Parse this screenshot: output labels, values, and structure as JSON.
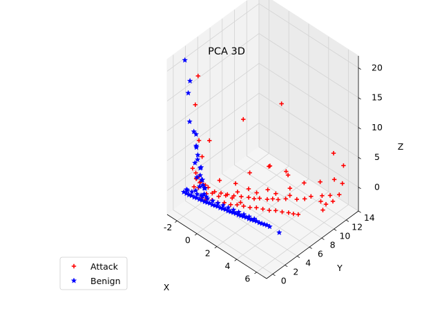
{
  "chart_data": {
    "type": "scatter",
    "title": "PCA 3D",
    "xlabel": "X",
    "ylabel": "Y",
    "zlabel": "Z",
    "xlim": [
      -3,
      7
    ],
    "ylim": [
      -1,
      14
    ],
    "zlim": [
      -4,
      22
    ],
    "xticks": [
      -2,
      0,
      2,
      4,
      6
    ],
    "yticks": [
      0,
      2,
      4,
      6,
      8,
      10,
      12,
      14
    ],
    "zticks": [
      0,
      5,
      10,
      15,
      20
    ],
    "xtick_labels": [
      "-2",
      "0",
      "2",
      "4",
      "6"
    ],
    "ytick_labels": [
      "0",
      "2",
      "4",
      "6",
      "8",
      "10",
      "12",
      "14"
    ],
    "ztick_labels": [
      "0",
      "5",
      "10",
      "15",
      "20"
    ],
    "legend_position": "lower-left",
    "grid": true,
    "series": [
      {
        "name": "Attack",
        "marker": "plus",
        "color": "#ff0000",
        "points": [
          [
            -1.0,
            0.8,
            20.0
          ],
          [
            -1.4,
            1.0,
            14.6
          ],
          [
            -0.6,
            0.3,
            10.0
          ],
          [
            -0.9,
            2.5,
            8.0
          ],
          [
            -0.9,
            1.3,
            6.2
          ],
          [
            -1.3,
            0.4,
            4.5
          ],
          [
            -1.1,
            0.6,
            3.8
          ],
          [
            -0.8,
            0.7,
            3.5
          ],
          [
            -1.0,
            0.5,
            3.0
          ],
          [
            -1.2,
            0.9,
            2.6
          ],
          [
            -0.9,
            1.1,
            2.2
          ],
          [
            -0.7,
            0.4,
            1.9
          ],
          [
            -1.1,
            0.3,
            1.7
          ],
          [
            -0.8,
            1.4,
            1.5
          ],
          [
            -1.3,
            1.6,
            1.2
          ],
          [
            -0.6,
            1.8,
            1.0
          ],
          [
            -1.0,
            2.0,
            0.8
          ],
          [
            -0.4,
            1.2,
            0.6
          ],
          [
            -0.2,
            2.2,
            0.4
          ],
          [
            0.0,
            1.5,
            0.9
          ],
          [
            0.2,
            2.6,
            0.3
          ],
          [
            0.4,
            1.9,
            0.5
          ],
          [
            0.6,
            3.0,
            0.2
          ],
          [
            0.8,
            2.4,
            0.7
          ],
          [
            1.0,
            3.4,
            0.1
          ],
          [
            1.2,
            2.8,
            0.4
          ],
          [
            1.5,
            3.8,
            0.2
          ],
          [
            1.8,
            3.2,
            0.0
          ],
          [
            2.0,
            4.2,
            0.3
          ],
          [
            2.3,
            4.6,
            0.1
          ],
          [
            2.6,
            5.0,
            0.2
          ],
          [
            3.0,
            5.6,
            0.0
          ],
          [
            3.3,
            6.0,
            0.1
          ],
          [
            3.6,
            6.4,
            0.0
          ],
          [
            4.0,
            7.0,
            0.1
          ],
          [
            -0.5,
            0.7,
            0.2
          ],
          [
            -0.3,
            0.9,
            -0.1
          ],
          [
            0.1,
            1.3,
            0.0
          ],
          [
            0.5,
            1.6,
            -0.2
          ],
          [
            0.9,
            2.0,
            -0.1
          ],
          [
            1.3,
            2.4,
            -0.3
          ],
          [
            1.7,
            2.8,
            -0.2
          ],
          [
            2.1,
            3.2,
            -0.3
          ],
          [
            2.5,
            3.6,
            -0.4
          ],
          [
            2.9,
            4.0,
            -0.3
          ],
          [
            3.3,
            4.4,
            -0.4
          ],
          [
            3.7,
            4.8,
            -0.5
          ],
          [
            4.1,
            5.2,
            -0.4
          ],
          [
            4.5,
            5.6,
            -0.5
          ],
          [
            4.9,
            6.0,
            -0.5
          ],
          [
            5.2,
            6.3,
            -0.6
          ],
          [
            5.5,
            6.6,
            -0.6
          ],
          [
            1.0,
            6.0,
            2.0
          ],
          [
            2.0,
            7.5,
            3.0
          ],
          [
            3.0,
            9.0,
            1.5
          ],
          [
            4.0,
            10.0,
            0.5
          ],
          [
            5.0,
            11.0,
            1.0
          ],
          [
            5.5,
            12.5,
            0.8
          ],
          [
            6.0,
            13.0,
            0.3
          ],
          [
            4.5,
            8.0,
            -0.2
          ],
          [
            5.0,
            9.5,
            -0.3
          ],
          [
            5.5,
            10.5,
            -0.4
          ],
          [
            6.0,
            11.0,
            -0.2
          ],
          [
            6.3,
            12.0,
            -0.5
          ],
          [
            6.5,
            9.0,
            -0.6
          ],
          [
            6.2,
            10.0,
            -0.7
          ],
          [
            3.5,
            8.5,
            0.2
          ],
          [
            2.5,
            6.5,
            0.4
          ],
          [
            1.5,
            5.0,
            0.6
          ],
          [
            -0.5,
            3.5,
            1.0
          ],
          [
            0.5,
            4.5,
            0.8
          ],
          [
            1.0,
            4.0,
            0.3
          ],
          [
            2.0,
            5.5,
            0.1
          ],
          [
            3.0,
            7.0,
            -0.1
          ],
          [
            3.8,
            8.0,
            -0.3
          ],
          [
            4.8,
            8.8,
            -0.4
          ],
          [
            5.8,
            9.8,
            -0.5
          ],
          [
            6.4,
            10.8,
            -0.6
          ],
          [
            -1.5,
            9.0,
            6.0
          ],
          [
            0.5,
            12.0,
            8.5
          ],
          [
            4.5,
            14.0,
            3.0
          ],
          [
            5.5,
            14.0,
            2.0
          ],
          [
            2.5,
            9.5,
            1.2
          ],
          [
            1.8,
            8.0,
            2.5
          ]
        ]
      },
      {
        "name": "Benign",
        "marker": "star",
        "color": "#0000ff",
        "points": [
          [
            -2.2,
            0.6,
            21.5
          ],
          [
            -1.5,
            0.3,
            19.0
          ],
          [
            -1.8,
            0.5,
            16.5
          ],
          [
            -1.6,
            0.4,
            12.0
          ],
          [
            -1.3,
            0.6,
            10.5
          ],
          [
            -1.2,
            0.8,
            10.0
          ],
          [
            -1.0,
            0.5,
            8.5
          ],
          [
            -1.1,
            0.7,
            8.0
          ],
          [
            -0.9,
            0.6,
            7.0
          ],
          [
            -0.8,
            0.4,
            6.5
          ],
          [
            -1.0,
            0.3,
            5.8
          ],
          [
            -0.7,
            0.8,
            5.0
          ],
          [
            -0.9,
            1.0,
            4.5
          ],
          [
            -0.6,
            0.5,
            4.0
          ],
          [
            -0.8,
            0.3,
            3.6
          ],
          [
            -0.5,
            0.7,
            3.2
          ],
          [
            -0.7,
            0.9,
            2.8
          ],
          [
            -0.4,
            0.6,
            2.5
          ],
          [
            -0.6,
            0.4,
            2.2
          ],
          [
            -0.3,
            0.8,
            1.9
          ],
          [
            -0.5,
            1.0,
            1.6
          ],
          [
            -0.2,
            0.5,
            1.3
          ],
          [
            -0.4,
            0.3,
            1.0
          ],
          [
            -0.1,
            0.7,
            0.8
          ],
          [
            -2.0,
            0.1,
            0.0
          ],
          [
            -1.8,
            0.2,
            -0.1
          ],
          [
            -1.6,
            0.3,
            -0.2
          ],
          [
            -1.4,
            0.4,
            -0.2
          ],
          [
            -1.2,
            0.5,
            -0.3
          ],
          [
            -1.0,
            0.6,
            -0.3
          ],
          [
            -0.8,
            0.7,
            -0.4
          ],
          [
            -0.6,
            0.8,
            -0.4
          ],
          [
            -0.4,
            0.9,
            -0.5
          ],
          [
            -0.2,
            1.0,
            -0.5
          ],
          [
            0.0,
            1.1,
            -0.5
          ],
          [
            0.2,
            1.2,
            -0.6
          ],
          [
            0.4,
            1.3,
            -0.6
          ],
          [
            0.6,
            1.4,
            -0.6
          ],
          [
            0.8,
            1.5,
            -0.7
          ],
          [
            1.0,
            1.6,
            -0.7
          ],
          [
            1.2,
            1.7,
            -0.7
          ],
          [
            1.4,
            1.8,
            -0.8
          ],
          [
            1.6,
            1.9,
            -0.8
          ],
          [
            1.8,
            2.0,
            -0.8
          ],
          [
            2.0,
            2.1,
            -0.8
          ],
          [
            2.2,
            2.2,
            -0.9
          ],
          [
            2.4,
            2.3,
            -0.9
          ],
          [
            2.6,
            2.4,
            -0.9
          ],
          [
            2.8,
            2.5,
            -0.9
          ],
          [
            3.0,
            2.6,
            -1.0
          ],
          [
            3.2,
            2.7,
            -1.0
          ],
          [
            3.4,
            2.8,
            -1.0
          ],
          [
            3.6,
            2.9,
            -1.0
          ],
          [
            3.8,
            3.0,
            -1.1
          ],
          [
            4.0,
            3.1,
            -1.1
          ],
          [
            4.2,
            3.2,
            -1.1
          ],
          [
            4.4,
            3.3,
            -1.1
          ],
          [
            4.6,
            3.4,
            -1.2
          ],
          [
            -1.9,
            0.4,
            0.3
          ],
          [
            -1.5,
            0.6,
            0.2
          ],
          [
            -1.1,
            0.8,
            0.1
          ],
          [
            -0.7,
            1.0,
            0.0
          ],
          [
            -0.3,
            1.2,
            -0.1
          ],
          [
            0.1,
            1.4,
            -0.2
          ],
          [
            0.5,
            1.6,
            -0.3
          ],
          [
            0.9,
            1.8,
            -0.4
          ],
          [
            1.3,
            2.0,
            -0.5
          ],
          [
            1.7,
            2.2,
            -0.6
          ],
          [
            2.1,
            2.4,
            -0.7
          ],
          [
            2.5,
            2.6,
            -0.8
          ],
          [
            2.9,
            2.8,
            -0.9
          ],
          [
            3.3,
            3.0,
            -1.0
          ],
          [
            5.5,
            3.5,
            -1.3
          ],
          [
            -1.7,
            0.2,
            0.5
          ],
          [
            -1.3,
            0.9,
            0.4
          ]
        ]
      }
    ]
  }
}
